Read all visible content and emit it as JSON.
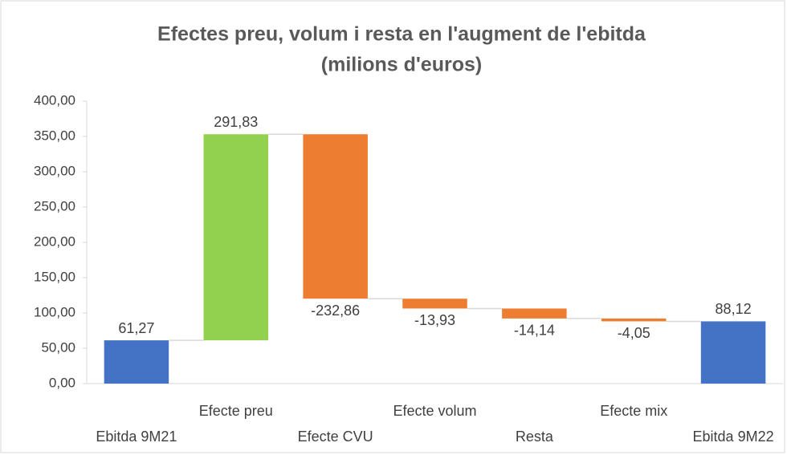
{
  "chart_data": {
    "type": "waterfall",
    "title": [
      "Efectes preu, volum i resta en l'augment de l'ebitda",
      "(milions d'euros)"
    ],
    "categories": [
      "Ebitda 9M21",
      "Efecte preu",
      "Efecte CVU",
      "Efecte volum",
      "Resta",
      "Efecte mix",
      "Ebitda 9M22"
    ],
    "measure": [
      "absolute",
      "relative",
      "relative",
      "relative",
      "relative",
      "relative",
      "absolute"
    ],
    "values": [
      61.27,
      291.83,
      -232.86,
      -13.93,
      -14.14,
      -4.05,
      88.12
    ],
    "value_labels": [
      "61,27",
      "291,83",
      "-232,86",
      "-13,93",
      "-14,14",
      "-4,05",
      "88,12"
    ],
    "colors": [
      "#4472c4",
      "#92d050",
      "#ed7d31",
      "#ed7d31",
      "#ed7d31",
      "#ed7d31",
      "#4472c4"
    ],
    "ylim": [
      0,
      400
    ],
    "yticks": [
      {
        "value": 0,
        "label": "0,00"
      },
      {
        "value": 50,
        "label": "50,00"
      },
      {
        "value": 100,
        "label": "100,00"
      },
      {
        "value": 150,
        "label": "150,00"
      },
      {
        "value": 200,
        "label": "200,00"
      },
      {
        "value": 250,
        "label": "250,00"
      },
      {
        "value": 300,
        "label": "300,00"
      },
      {
        "value": 350,
        "label": "350,00"
      },
      {
        "value": 400,
        "label": "400,00"
      }
    ],
    "grid": false
  }
}
